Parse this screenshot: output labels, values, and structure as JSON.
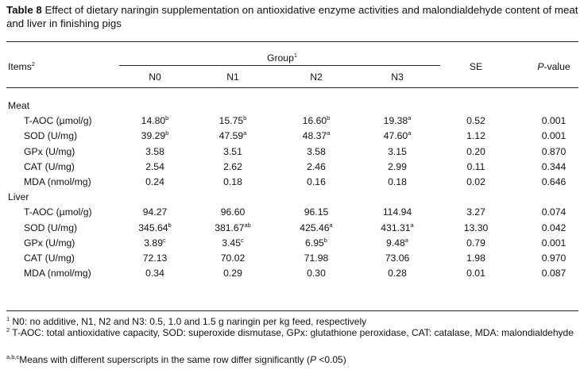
{
  "caption": {
    "label": "Table 8",
    "text": "Effect of dietary naringin supplementation on antioxidative enzyme activities and malondialdehyde content of meat and liver in finishing pigs"
  },
  "header": {
    "items": "Items",
    "items_sup": "2",
    "group": "Group",
    "group_sup": "1",
    "groups": [
      "N0",
      "N1",
      "N2",
      "N3"
    ],
    "se": "SE",
    "p_italic": "P",
    "p_rest": "-value"
  },
  "sections": [
    {
      "title": "Meat",
      "rows": [
        {
          "item": "T-AOC (µmol/g)",
          "vals": [
            [
              "14.80",
              "b"
            ],
            [
              "15.75",
              "b"
            ],
            [
              "16.60",
              "b"
            ],
            [
              "19.38",
              "a"
            ]
          ],
          "se": "0.52",
          "p": "0.001"
        },
        {
          "item": "SOD (U/mg)",
          "vals": [
            [
              "39.29",
              "b"
            ],
            [
              "47.59",
              "a"
            ],
            [
              "48.37",
              "a"
            ],
            [
              "47.60",
              "a"
            ]
          ],
          "se": "1.12",
          "p": "0.001"
        },
        {
          "item": "GPx (U/mg)",
          "vals": [
            [
              "3.58",
              ""
            ],
            [
              "3.51",
              ""
            ],
            [
              "3.58",
              ""
            ],
            [
              "3.15",
              ""
            ]
          ],
          "se": "0.20",
          "p": "0.870"
        },
        {
          "item": "CAT (U/mg)",
          "vals": [
            [
              "2.54",
              ""
            ],
            [
              "2.62",
              ""
            ],
            [
              "2.46",
              ""
            ],
            [
              "2.99",
              ""
            ]
          ],
          "se": "0.11",
          "p": "0.344"
        },
        {
          "item": "MDA (nmol/mg)",
          "vals": [
            [
              "0.24",
              ""
            ],
            [
              "0.18",
              ""
            ],
            [
              "0.16",
              ""
            ],
            [
              "0.18",
              ""
            ]
          ],
          "se": "0.02",
          "p": "0.646"
        }
      ]
    },
    {
      "title": "Liver",
      "rows": [
        {
          "item": "T-AOC (µmol/g)",
          "vals": [
            [
              "94.27",
              ""
            ],
            [
              "96.60",
              ""
            ],
            [
              "96.15",
              ""
            ],
            [
              "114.94",
              ""
            ]
          ],
          "se": "3.27",
          "p": "0.074"
        },
        {
          "item": "SOD (U/mg)",
          "vals": [
            [
              "345.64",
              "b"
            ],
            [
              "381.67",
              "ab"
            ],
            [
              "425.46",
              "a"
            ],
            [
              "431.31",
              "a"
            ]
          ],
          "se": "13.30",
          "p": "0.042"
        },
        {
          "item": "GPx (U/mg)",
          "vals": [
            [
              "3.89",
              "c"
            ],
            [
              "3.45",
              "c"
            ],
            [
              "6.95",
              "b"
            ],
            [
              "9.48",
              "a"
            ]
          ],
          "se": "0.79",
          "p": "0.001"
        },
        {
          "item": "CAT (U/mg)",
          "vals": [
            [
              "72.13",
              ""
            ],
            [
              "70.02",
              ""
            ],
            [
              "71.98",
              ""
            ],
            [
              "73.06",
              ""
            ]
          ],
          "se": "1.98",
          "p": "0.970"
        },
        {
          "item": "MDA (nmol/mg)",
          "vals": [
            [
              "0.34",
              ""
            ],
            [
              "0.29",
              ""
            ],
            [
              "0.30",
              ""
            ],
            [
              "0.28",
              ""
            ]
          ],
          "se": "0.01",
          "p": "0.087"
        }
      ]
    }
  ],
  "footnotes": [
    {
      "sup": "1",
      "text": "N0: no additive, N1, N2 and N3: 0.5, 1.0 and 1.5 g naringin per kg feed, respectively"
    },
    {
      "sup": "2",
      "text": "T-AOC: total antioxidative capacity, SOD: superoxide dismutase, GPx: glutathione peroxidase, CAT: catalase, MDA: malondialdehyde"
    },
    {
      "sup": "a,b,c",
      "text": "Means with different superscripts in the same row differ significantly (",
      "italic": "P",
      "tail": " <0.05)"
    }
  ]
}
